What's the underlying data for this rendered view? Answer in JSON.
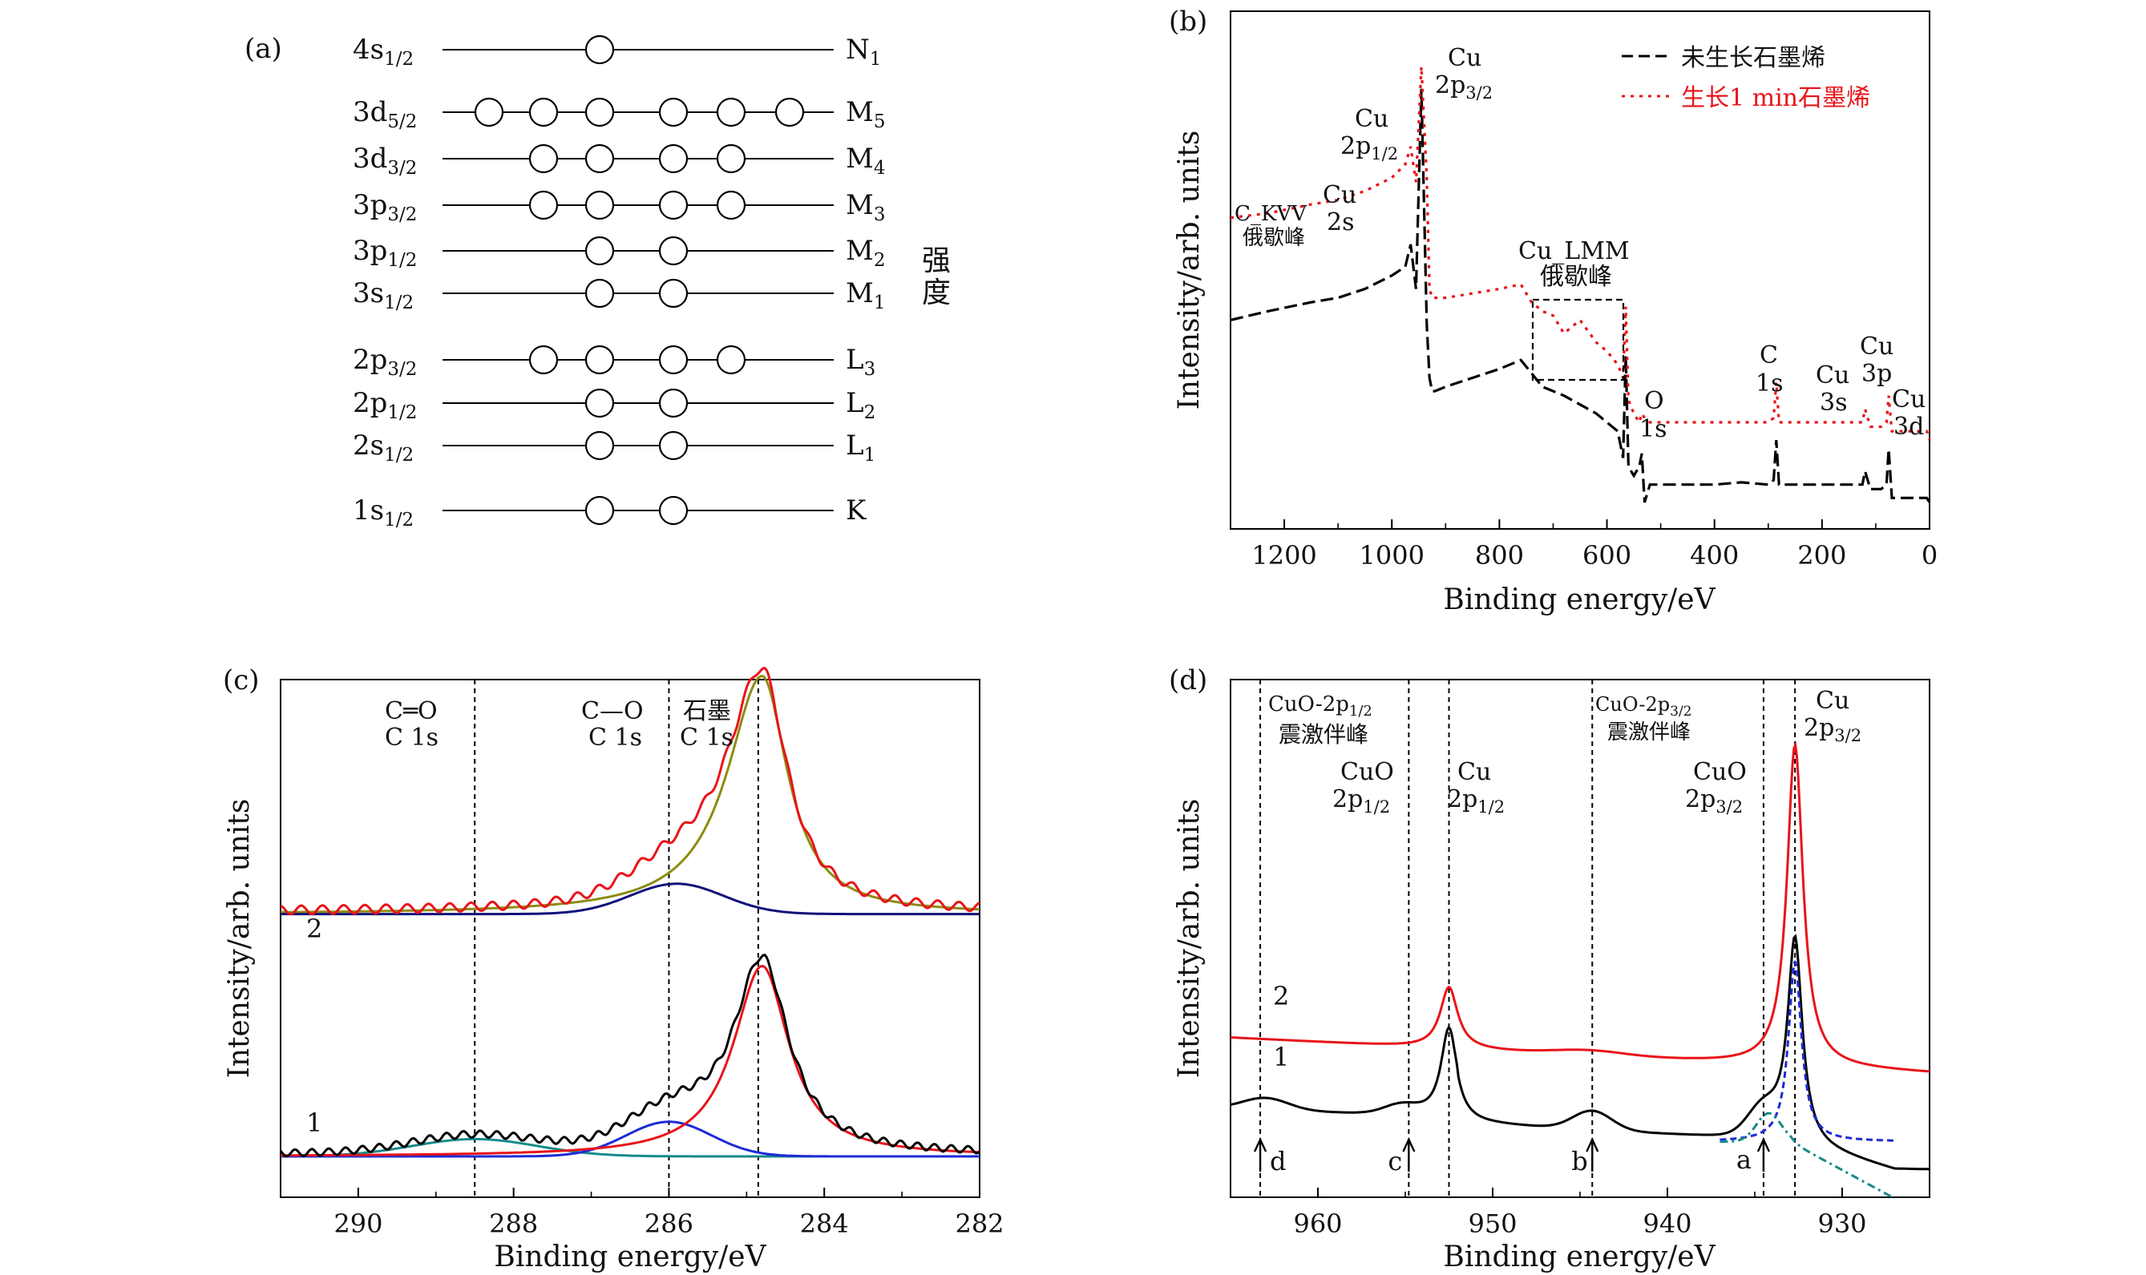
{
  "panels": {
    "a": {
      "label": "(a)",
      "side_label": "强度",
      "levels": [
        {
          "main": "4s",
          "sub": "1/2",
          "right": "N",
          "rsub": "1",
          "electrons": 1
        },
        {
          "main": "3d",
          "sub": "5/2",
          "right": "M",
          "rsub": "5",
          "electrons": 6
        },
        {
          "main": "3d",
          "sub": "3/2",
          "right": "M",
          "rsub": "4",
          "electrons": 4
        },
        {
          "main": "3p",
          "sub": "3/2",
          "right": "M",
          "rsub": "3",
          "electrons": 4
        },
        {
          "main": "3p",
          "sub": "1/2",
          "right": "M",
          "rsub": "2",
          "electrons": 2
        },
        {
          "main": "3s",
          "sub": "1/2",
          "right": "M",
          "rsub": "1",
          "electrons": 2
        },
        {
          "main": "2p",
          "sub": "3/2",
          "right": "L",
          "rsub": "3",
          "electrons": 4
        },
        {
          "main": "2p",
          "sub": "1/2",
          "right": "L",
          "rsub": "2",
          "electrons": 2
        },
        {
          "main": "2s",
          "sub": "1/2",
          "right": "L",
          "rsub": "1",
          "electrons": 2
        },
        {
          "main": "1s",
          "sub": "1/2",
          "right": "K",
          "rsub": "",
          "electrons": 2
        }
      ]
    },
    "b": {
      "label": "(b)",
      "ylabel": "Intensity/arb. units",
      "xlabel": "Binding energy/eV",
      "legend": [
        "未生长石墨烯",
        "生长1 min石墨烯"
      ],
      "annotations": {
        "ckvv_1": "C_KVV",
        "ckvv_2": "俄歇峰",
        "cu2s_1": "Cu",
        "cu2s_2": "2s",
        "cu2p12_1": "Cu",
        "cu2p12_2": "2p",
        "cu2p12_sub": "1/2",
        "cu2p32_1": "Cu",
        "cu2p32_2": "2p",
        "cu2p32_sub": "3/2",
        "lmm_1": "Cu_LMM",
        "lmm_2": "俄歇峰",
        "o1s_1": "O",
        "o1s_2": "1s",
        "c1s_1": "C",
        "c1s_2": "1s",
        "cu3s_1": "Cu",
        "cu3s_2": "3s",
        "cu3p_1": "Cu",
        "cu3p_2": "3p",
        "cu3d_1": "Cu",
        "cu3d_2": "3d"
      }
    },
    "c": {
      "label": "(c)",
      "ylabel": "Intensity/arb. units",
      "xlabel": "Binding energy/eV",
      "curve_labels": [
        "2",
        "1"
      ],
      "annotations": {
        "co_double_1": "C═O",
        "co_double_2": "C 1s",
        "co_single_1": "C—O",
        "co_single_2": "C 1s",
        "graphite_1": "石墨",
        "graphite_2": "C 1s"
      }
    },
    "d": {
      "label": "(d)",
      "ylabel": "Intensity/arb. units",
      "xlabel": "Binding energy/eV",
      "curve_labels": [
        "2",
        "1"
      ],
      "arrow_labels": [
        "d",
        "c",
        "b",
        "a"
      ],
      "annotations": {
        "sat12_1": "CuO-2p",
        "sat12_sub": "1/2",
        "sat12_2": "震激伴峰",
        "cuo12_1": "CuO",
        "cuo12_2": "2p",
        "cuo12_sub": "1/2",
        "cu12_1": "Cu",
        "cu12_2": "2p",
        "cu12_sub": "1/2",
        "sat32_1": "CuO-2p",
        "sat32_sub": "3/2",
        "sat32_2": "震激伴峰",
        "cuo32_1": "CuO",
        "cuo32_2": "2p",
        "cuo32_sub": "3/2",
        "cu32_1": "Cu",
        "cu32_2": "2p",
        "cu32_sub": "3/2"
      }
    }
  },
  "chart_data": [
    {
      "panel": "a",
      "type": "other",
      "description_levels": [
        "4s1/2 N1",
        "3d5/2 M5",
        "3d3/2 M4",
        "3p3/2 M3",
        "3p1/2 M2",
        "3s1/2 M1",
        "2p3/2 L3",
        "2p1/2 L2",
        "2s1/2 L1",
        "1s1/2 K"
      ]
    },
    {
      "panel": "b",
      "type": "line",
      "xlabel": "Binding energy/eV",
      "ylabel": "Intensity/arb. units",
      "xlim": [
        1300,
        0
      ],
      "xticks": [
        1200,
        1000,
        800,
        600,
        400,
        200,
        0
      ],
      "series": [
        {
          "name": "未生长石墨烯",
          "style": "dashed",
          "color": "#000000",
          "x": [
            1300,
            1230,
            1150,
            1100,
            1050,
            1000,
            975,
            965,
            955,
            945,
            935,
            930,
            925,
            920,
            900,
            850,
            800,
            760,
            740,
            720,
            700,
            680,
            650,
            620,
            600,
            580,
            570,
            565,
            560,
            550,
            545,
            540,
            535,
            530,
            520,
            500,
            450,
            400,
            350,
            300,
            290,
            285,
            280,
            250,
            200,
            150,
            125,
            120,
            110,
            90,
            80,
            76,
            70,
            60,
            40,
            20,
            5,
            0
          ],
          "y": [
            0.43,
            0.45,
            0.47,
            0.48,
            0.5,
            0.53,
            0.55,
            0.6,
            0.5,
            0.95,
            0.42,
            0.3,
            0.27,
            0.27,
            0.28,
            0.3,
            0.32,
            0.34,
            0.31,
            0.28,
            0.27,
            0.26,
            0.24,
            0.22,
            0.2,
            0.18,
            0.12,
            0.35,
            0.1,
            0.08,
            0.09,
            0.1,
            0.13,
            0.02,
            0.06,
            0.06,
            0.06,
            0.06,
            0.065,
            0.06,
            0.07,
            0.16,
            0.06,
            0.06,
            0.06,
            0.06,
            0.06,
            0.09,
            0.05,
            0.05,
            0.06,
            0.14,
            0.03,
            0.03,
            0.03,
            0.03,
            0.03,
            0.02
          ]
        },
        {
          "name": "生长1 min石墨烯",
          "style": "dotted",
          "color": "#e8141a",
          "x": [
            1300,
            1230,
            1150,
            1100,
            1050,
            1000,
            975,
            965,
            955,
            945,
            935,
            930,
            925,
            900,
            850,
            800,
            760,
            740,
            720,
            700,
            680,
            650,
            620,
            600,
            580,
            570,
            565,
            560,
            550,
            540,
            535,
            530,
            520,
            500,
            450,
            400,
            350,
            300,
            290,
            285,
            280,
            250,
            200,
            150,
            125,
            120,
            110,
            90,
            80,
            76,
            70,
            60,
            40,
            20,
            5,
            0
          ],
          "y": [
            0.66,
            0.67,
            0.69,
            0.7,
            0.72,
            0.75,
            0.78,
            0.82,
            0.74,
            1.0,
            0.75,
            0.5,
            0.48,
            0.48,
            0.49,
            0.5,
            0.51,
            0.47,
            0.45,
            0.44,
            0.4,
            0.43,
            0.38,
            0.36,
            0.33,
            0.3,
            0.46,
            0.25,
            0.22,
            0.2,
            0.22,
            0.21,
            0.2,
            0.2,
            0.2,
            0.2,
            0.2,
            0.2,
            0.21,
            0.29,
            0.2,
            0.2,
            0.2,
            0.2,
            0.2,
            0.23,
            0.19,
            0.19,
            0.2,
            0.26,
            0.18,
            0.18,
            0.18,
            0.18,
            0.18,
            0.16
          ]
        }
      ]
    },
    {
      "panel": "c",
      "type": "line",
      "xlabel": "Binding energy/eV",
      "ylabel": "Intensity/arb. units",
      "xlim": [
        291,
        282
      ],
      "xticks": [
        290,
        288,
        286,
        284,
        282
      ],
      "vlines": [
        288.5,
        286.0,
        284.85
      ],
      "peaks": {
        "curve_2": {
          "baseline": 0.56,
          "graphite": {
            "center": 284.8,
            "height": 0.55
          },
          "c_o": {
            "center": 285.9,
            "height": 0.07
          }
        },
        "curve_1": {
          "baseline": 0.0,
          "graphite": {
            "center": 284.8,
            "height": 0.44
          },
          "c_o": {
            "center": 286.0,
            "height": 0.08
          },
          "c_double_o": {
            "center": 288.5,
            "height": 0.04
          }
        }
      }
    },
    {
      "panel": "d",
      "type": "line",
      "xlabel": "Binding energy/eV",
      "ylabel": "Intensity/arb. units",
      "xlim": [
        965,
        925
      ],
      "xticks": [
        960,
        950,
        940,
        930
      ],
      "vlines": [
        963.3,
        954.8,
        952.5,
        944.3,
        934.5,
        932.7
      ],
      "arrows": [
        {
          "label": "d",
          "x": 963.3
        },
        {
          "label": "c",
          "x": 954.8
        },
        {
          "label": "b",
          "x": 944.3
        },
        {
          "label": "a",
          "x": 934.5
        }
      ],
      "peaks": {
        "curve_2": {
          "cu_2p32": 932.7,
          "cu_2p12": 952.5
        },
        "curve_1": {
          "cu_2p32": 932.7,
          "cu_2p12": 952.5,
          "cuo_2p32": 934.5,
          "satellites": [
            944.3,
            963.3
          ]
        }
      }
    }
  ]
}
